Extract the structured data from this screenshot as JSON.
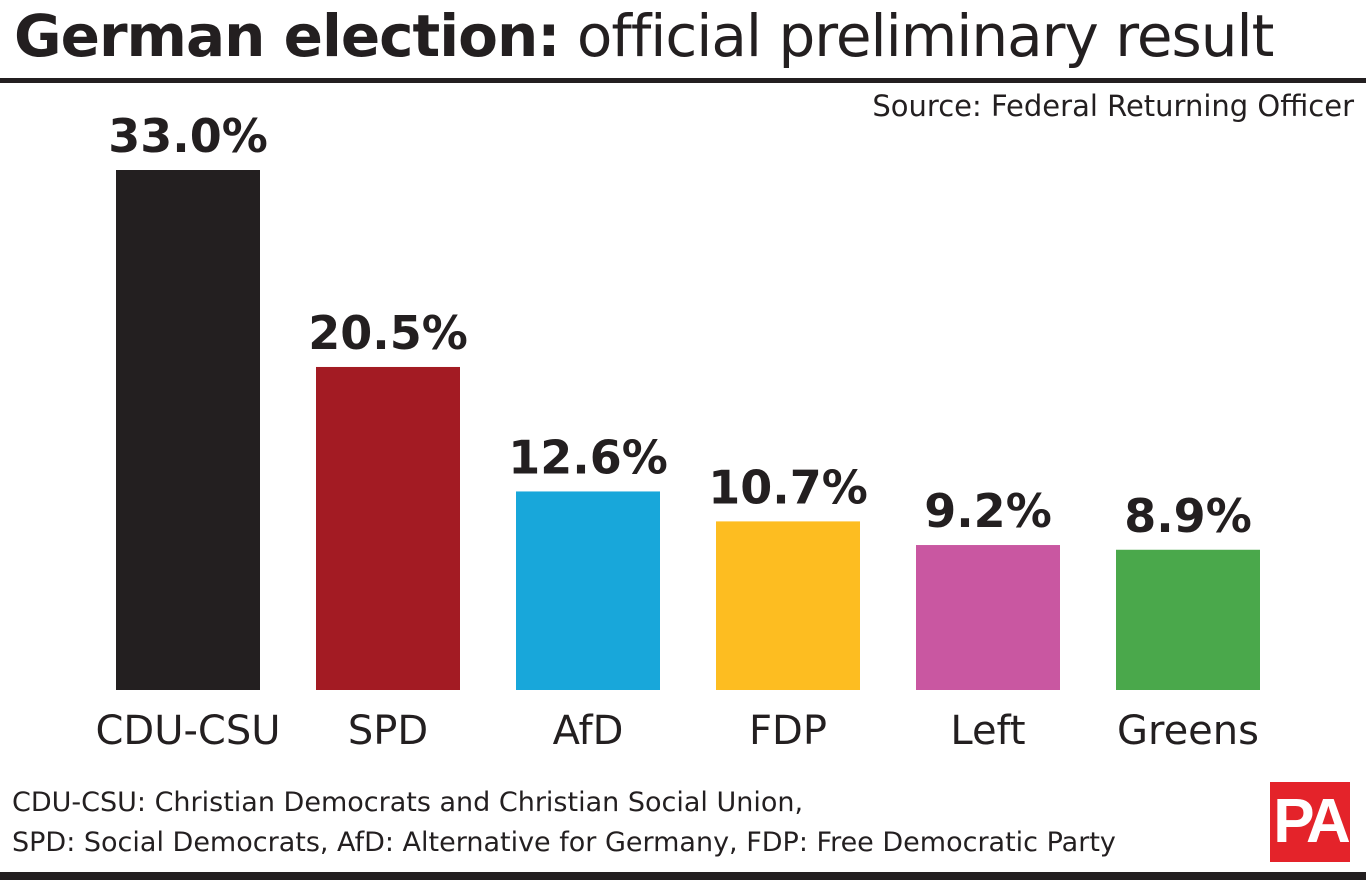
{
  "header": {
    "title_bold": "German election:",
    "title_light": "official preliminary result",
    "source": "Source: Federal Returning Officer"
  },
  "chart_data": {
    "type": "bar",
    "title": "German election: official preliminary result",
    "categories": [
      "CDU-CSU",
      "SPD",
      "AfD",
      "FDP",
      "Left",
      "Greens"
    ],
    "values": [
      33.0,
      20.5,
      12.6,
      10.7,
      9.2,
      8.9
    ],
    "data_labels": [
      "33.0%",
      "20.5%",
      "12.6%",
      "10.7%",
      "9.2%",
      "8.9%"
    ],
    "colors": [
      "#231f20",
      "#a31b23",
      "#18a7da",
      "#fdbd21",
      "#c957a1",
      "#4aa84b"
    ],
    "xlabel": "",
    "ylabel": "",
    "ylim": [
      0,
      33.0
    ],
    "grid": false,
    "legend": "none"
  },
  "footer": {
    "note_line1": "CDU-CSU: Christian Democrats and Christian Social Union,",
    "note_line2": "SPD: Social Democrats, AfD: Alternative for Germany, FDP: Free Democratic Party",
    "logo_text": "PA",
    "logo_color": "#e4232a"
  }
}
